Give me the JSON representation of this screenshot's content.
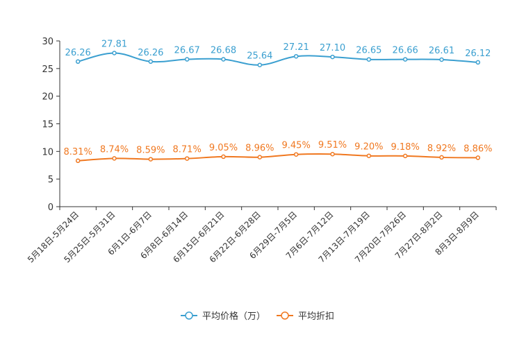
{
  "chart_data": {
    "type": "line",
    "title": "",
    "xlabel": "",
    "ylabel": "",
    "ylim": [
      0,
      30
    ],
    "yticks": [
      0,
      5,
      10,
      15,
      20,
      25,
      30
    ],
    "categories": [
      "5月18日-5月24日",
      "5月25日-5月31日",
      "6月1日-6月7日",
      "6月8日-6月14日",
      "6月15日-6月21日",
      "6月22日-6月28日",
      "6月29日-7月5日",
      "7月6日-7月12日",
      "7月13日-7月19日",
      "7月20日-7月26日",
      "7月27日-8月2日",
      "8月3日-8月9日"
    ],
    "series": [
      {
        "name": "平均价格（万）",
        "color": "#3a9fd0",
        "values": [
          26.26,
          27.81,
          26.26,
          26.67,
          26.68,
          25.64,
          27.21,
          27.1,
          26.65,
          26.66,
          26.61,
          26.12
        ],
        "labels": [
          "26.26",
          "27.81",
          "26.26",
          "26.67",
          "26.68",
          "25.64",
          "27.21",
          "27.10",
          "26.65",
          "26.66",
          "26.61",
          "26.12"
        ]
      },
      {
        "name": "平均折扣",
        "color": "#f07820",
        "values": [
          8.31,
          8.74,
          8.59,
          8.71,
          9.05,
          8.96,
          9.45,
          9.51,
          9.2,
          9.18,
          8.92,
          8.86
        ],
        "labels": [
          "8.31%",
          "8.74%",
          "8.59%",
          "8.71%",
          "9.05%",
          "8.96%",
          "9.45%",
          "9.51%",
          "9.20%",
          "9.18%",
          "8.92%",
          "8.86%"
        ]
      }
    ],
    "legend": {
      "position": "bottom-center"
    }
  }
}
